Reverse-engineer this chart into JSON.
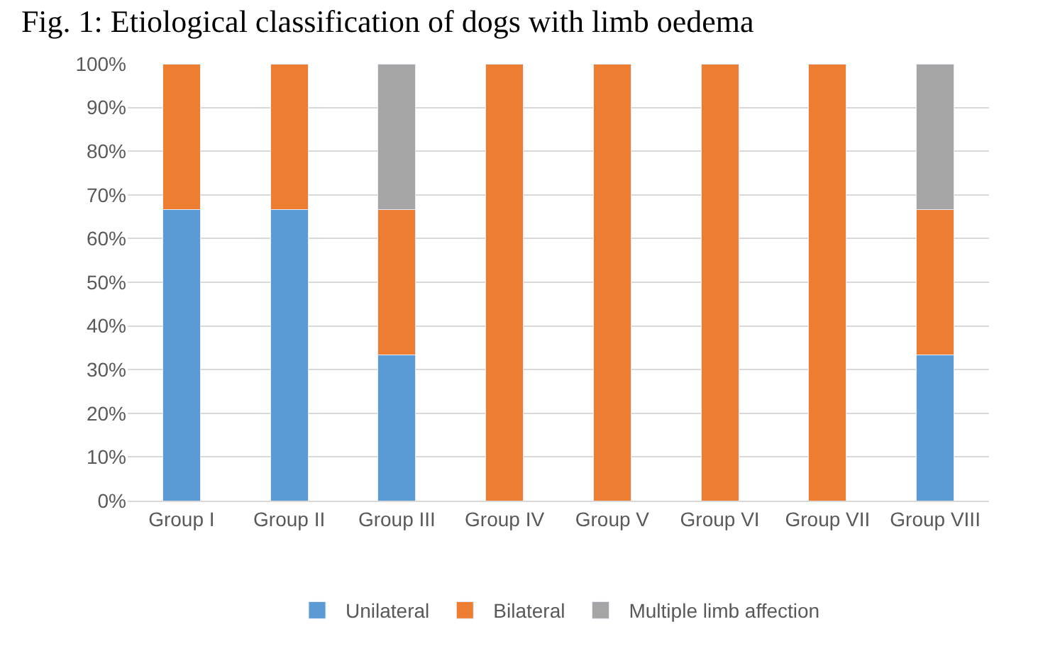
{
  "chart_data": {
    "type": "bar",
    "stacked": true,
    "title": "Fig. 1: Etiological classification of dogs with limb oedema",
    "categories": [
      "Group I",
      "Group II",
      "Group III",
      "Group IV",
      "Group V",
      "Group VI",
      "Group VII",
      "Group VIII"
    ],
    "series": [
      {
        "name": "Unilateral",
        "color": "#5b9bd5",
        "values": [
          66.7,
          66.7,
          33.3,
          null,
          null,
          null,
          null,
          33.3
        ]
      },
      {
        "name": "Bilateral",
        "color": "#ed7d31",
        "values": [
          33.3,
          33.3,
          33.3,
          100,
          100,
          100,
          100,
          33.3
        ]
      },
      {
        "name": "Multiple limb affection",
        "color": "#a5a5a5",
        "values": [
          null,
          null,
          33.4,
          null,
          null,
          null,
          null,
          33.4
        ]
      }
    ],
    "ylim": [
      0,
      100
    ],
    "yticks": [
      {
        "value": 0,
        "label": "0%"
      },
      {
        "value": 10,
        "label": "10%"
      },
      {
        "value": 20,
        "label": "20%"
      },
      {
        "value": 30,
        "label": "30%"
      },
      {
        "value": 40,
        "label": "40%"
      },
      {
        "value": 50,
        "label": "50%"
      },
      {
        "value": 60,
        "label": "60%"
      },
      {
        "value": 70,
        "label": "70%"
      },
      {
        "value": 80,
        "label": "80%"
      },
      {
        "value": 90,
        "label": "90%"
      },
      {
        "value": 100,
        "label": "100%"
      }
    ],
    "grid": "y",
    "legend": "bottom"
  }
}
